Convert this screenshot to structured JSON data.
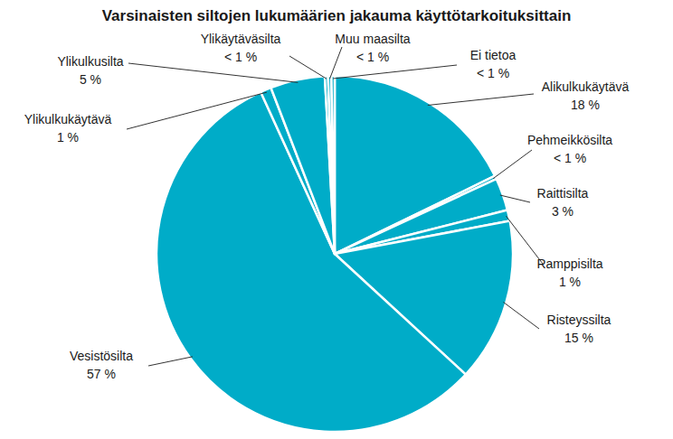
{
  "chart_data": {
    "type": "pie",
    "title": "Varsinaisten siltojen lukumäärien jakauma käyttötarkoituksittain",
    "categories": [
      "Alikulkukäytävä",
      "Pehmeikkösilta",
      "Raittisilta",
      "Ramppisilta",
      "Risteyssilta",
      "Vesistösilta",
      "Ylikulkukäytävä",
      "Ylikulkusilta",
      "Ylikäytäväsilta",
      "Muu maasilta",
      "Ei tietoa"
    ],
    "values": [
      18,
      0.3,
      3,
      1,
      15,
      57,
      1,
      5,
      0.3,
      0.3,
      0.3
    ],
    "value_labels": [
      "18 %",
      "< 1 %",
      "3 %",
      "1 %",
      "15 %",
      "57 %",
      "1 %",
      "5 %",
      "< 1 %",
      "< 1 %",
      "< 1 %"
    ],
    "color": "#00acc8",
    "data_labels": true
  }
}
